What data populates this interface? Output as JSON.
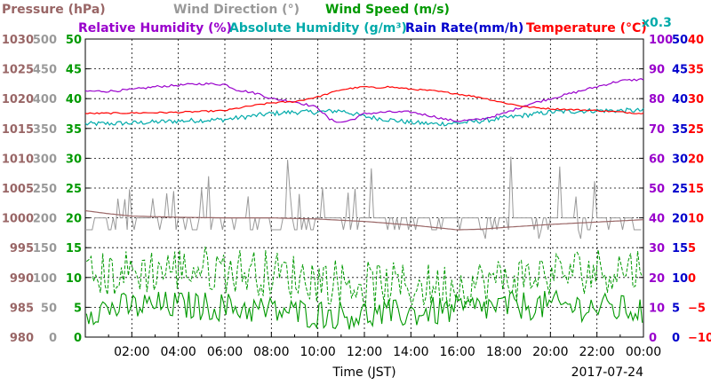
{
  "chart_data": {
    "type": "line",
    "date": "2017-07-24",
    "xlabel": "Time (JST)",
    "x_ticks": [
      "02:00",
      "04:00",
      "06:00",
      "08:00",
      "10:00",
      "12:00",
      "14:00",
      "16:00",
      "18:00",
      "20:00",
      "22:00",
      "00:00"
    ],
    "x_range_hours": [
      0,
      24
    ],
    "legend": [
      {
        "name": "Pressure (hPa)",
        "color": "#996666"
      },
      {
        "name": "Wind Direction (°)",
        "color": "#999999"
      },
      {
        "name": "Wind Speed (m/s)",
        "color": "#009900"
      },
      {
        "name": "Relative Humidity (%)",
        "color": "#9900cc"
      },
      {
        "name": "Absolute Humidity (g/m³)",
        "color": "#00aaaa"
      },
      {
        "name": "Rain Rate(mm/h)",
        "color": "#0000cc"
      },
      {
        "name": "Temperature (°C)",
        "color": "#ff0000"
      }
    ],
    "abs_humidity_scale_note": "x0.3",
    "axes": [
      {
        "name": "pressure",
        "color": "#996666",
        "side": "left",
        "ticks": [
          "980",
          "985",
          "990",
          "995",
          "1000",
          "1005",
          "1010",
          "1015",
          "1020",
          "1025",
          "1030"
        ]
      },
      {
        "name": "wind-direction",
        "color": "#999999",
        "side": "left",
        "ticks": [
          "0",
          "50",
          "100",
          "150",
          "200",
          "250",
          "300",
          "350",
          "400",
          "450",
          "500"
        ]
      },
      {
        "name": "wind-speed",
        "color": "#009900",
        "side": "left",
        "ticks": [
          "0",
          "5",
          "10",
          "15",
          "20",
          "25",
          "30",
          "35",
          "40",
          "45",
          "50"
        ]
      },
      {
        "name": "relative-humidity",
        "color": "#9900cc",
        "side": "right",
        "ticks": [
          "0",
          "10",
          "20",
          "30",
          "40",
          "50",
          "60",
          "70",
          "80",
          "90",
          "100"
        ]
      },
      {
        "name": "rain-rate",
        "color": "#0000cc",
        "side": "right",
        "ticks": [
          "0",
          "5",
          "10",
          "15",
          "20",
          "25",
          "30",
          "35",
          "40",
          "45",
          "50"
        ]
      },
      {
        "name": "temperature",
        "color": "#ff0000",
        "side": "right",
        "ticks": [
          "−10",
          "−5",
          "0",
          "5",
          "10",
          "15",
          "20",
          "25",
          "30",
          "35",
          "40"
        ]
      }
    ],
    "series": [
      {
        "name": "Temperature (°C)",
        "axis_range": [
          -10,
          40
        ],
        "x_hours": [
          0,
          2,
          4,
          6,
          7,
          8,
          9,
          10,
          11,
          12,
          12.5,
          13,
          14,
          15,
          16,
          17,
          18,
          19,
          20,
          22,
          24
        ],
        "values": [
          27.5,
          27.6,
          27.7,
          28,
          28.7,
          29.3,
          29.5,
          30.3,
          31.5,
          32,
          31.8,
          32,
          31.6,
          31.3,
          30.8,
          30.2,
          29.3,
          28.6,
          28.3,
          28,
          27.5
        ]
      },
      {
        "name": "Relative Humidity (%)",
        "axis_range": [
          0,
          100
        ],
        "x_hours": [
          0,
          1,
          2,
          3,
          4,
          5,
          6,
          6.5,
          7,
          7.5,
          8,
          9,
          10,
          10.5,
          11,
          11.5,
          12,
          13,
          14,
          15,
          15.5,
          16,
          17,
          18,
          19,
          20,
          21,
          22,
          23,
          24
        ],
        "values": [
          82.5,
          82.5,
          83,
          84,
          84.5,
          85,
          84.8,
          83,
          82.3,
          81.5,
          80,
          79,
          77,
          73,
          72,
          73,
          75,
          75.5,
          75.5,
          74,
          73,
          72.5,
          73,
          75,
          78,
          80,
          82,
          84,
          86,
          86.5
        ]
      },
      {
        "name": "Absolute Humidity (g/m³) x0.3",
        "axis_range": [
          0,
          100
        ],
        "x_hours": [
          0,
          2,
          4,
          6,
          8,
          9,
          10,
          11,
          12,
          13,
          14,
          15,
          16,
          17,
          18,
          19,
          20,
          22,
          24
        ],
        "values": [
          71.5,
          71.8,
          72.5,
          73,
          75,
          75.5,
          75.5,
          76,
          74,
          73,
          72,
          71.5,
          71.8,
          72.5,
          73.5,
          74.5,
          75.5,
          76,
          76
        ]
      },
      {
        "name": "Pressure (hPa)",
        "axis_range": [
          980,
          1030
        ],
        "x_hours": [
          0,
          1,
          2,
          4,
          6,
          8,
          10,
          12,
          14,
          15,
          16,
          17,
          18,
          20,
          22,
          24
        ],
        "values": [
          1001.2,
          1000.7,
          1000.3,
          1000.1,
          1000,
          1000,
          999.8,
          999.4,
          998.8,
          998.4,
          998,
          998.1,
          998.4,
          998.9,
          999.3,
          999.7
        ]
      },
      {
        "name": "Wind Direction (°)",
        "axis_range": [
          0,
          500
        ],
        "baseline": 200,
        "values_range": [
          160,
          310
        ]
      },
      {
        "name": "Wind Speed (m/s)",
        "axis_range": [
          0,
          50
        ],
        "mean_range": [
          2,
          7
        ],
        "gust_range": [
          6,
          14
        ]
      }
    ]
  }
}
